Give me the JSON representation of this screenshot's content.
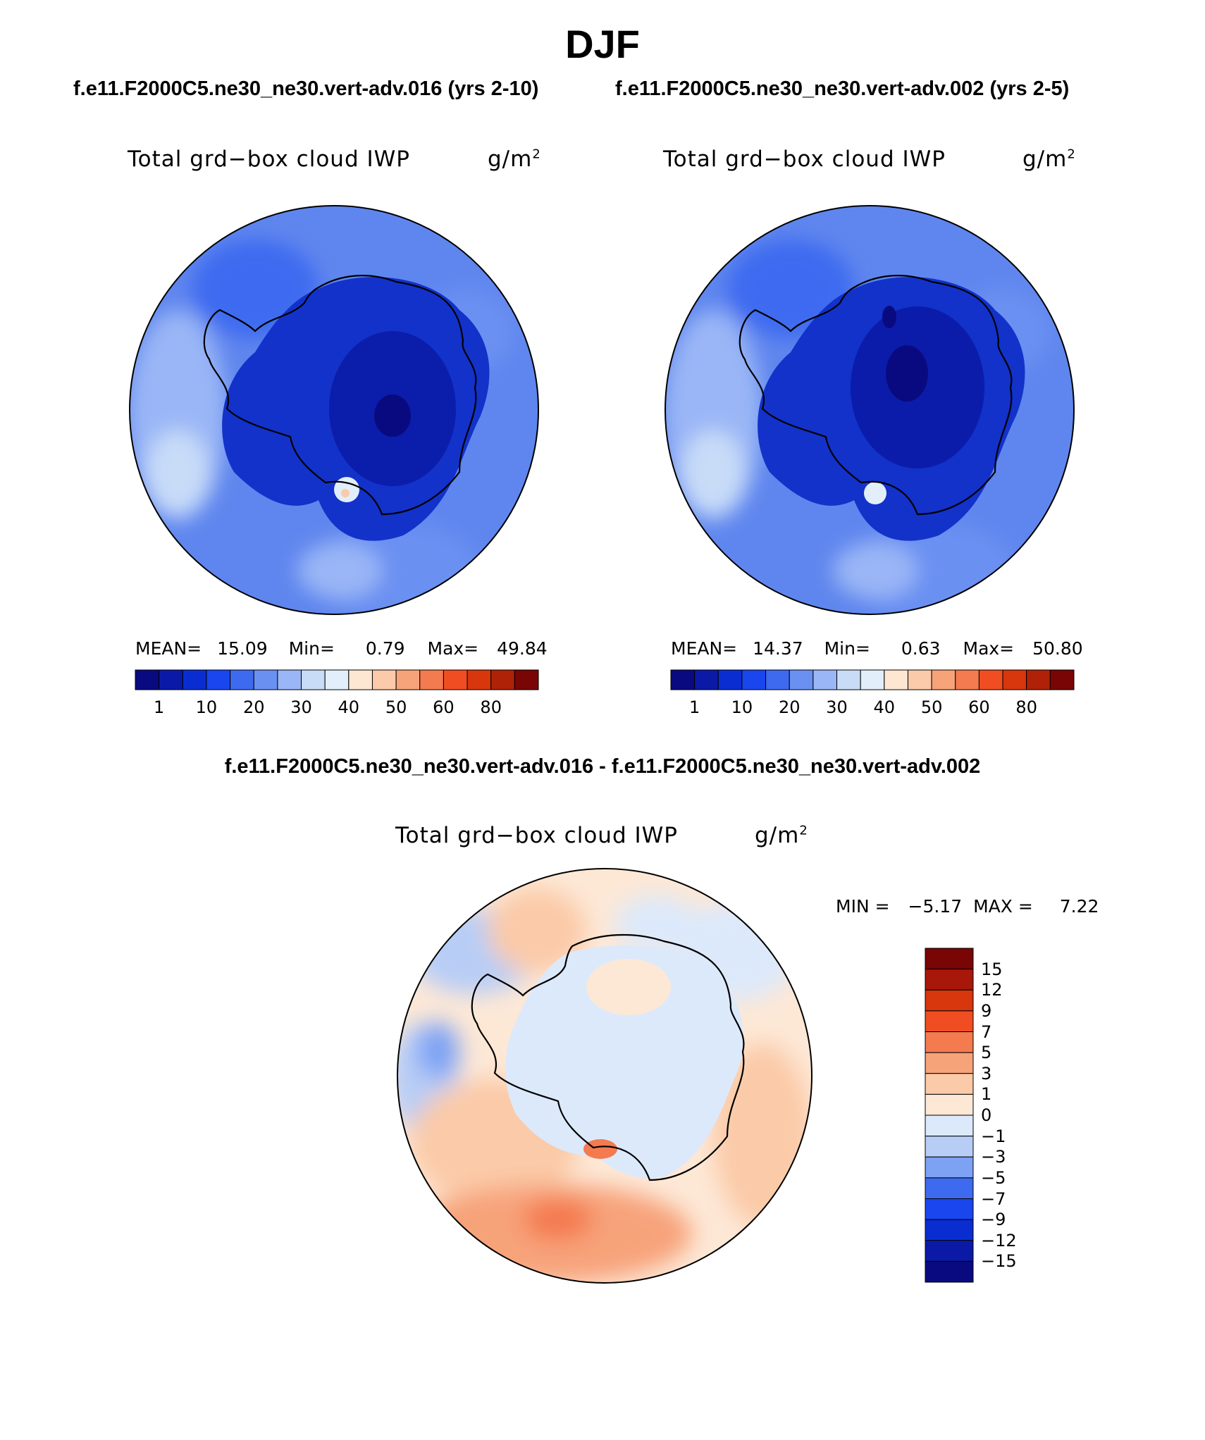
{
  "figure": {
    "season": "DJF",
    "left_case_title": "f.e11.F2000C5.ne30_ne30.vert-adv.016 (yrs 2-10)",
    "right_case_title": "f.e11.F2000C5.ne30_ne30.vert-adv.002 (yrs 2-5)",
    "diff_title": "f.e11.F2000C5.ne30_ne30.vert-adv.016 - f.e11.F2000C5.ne30_ne30.vert-adv.002"
  },
  "panels": {
    "left": {
      "variable": "Total grd−box cloud IWP",
      "units": "g/m",
      "units_sup": "2",
      "mean_label": "MEAN=",
      "mean": "15.09",
      "min_label": "Min=",
      "min": "0.79",
      "max_label": "Max=",
      "max": "49.84"
    },
    "right": {
      "variable": "Total grd−box cloud IWP",
      "units": "g/m",
      "units_sup": "2",
      "mean_label": "MEAN=",
      "mean": "14.37",
      "min_label": "Min=",
      "min": "0.63",
      "max_label": "Max=",
      "max": "50.80"
    },
    "diff": {
      "variable": "Total grd−box cloud IWP",
      "units": "g/m",
      "units_sup": "2",
      "min_label": "MIN =",
      "min": "−5.17",
      "max_label": "MAX =",
      "max": "7.22"
    }
  },
  "colorbars": {
    "field": {
      "colors": [
        "#0a0a80",
        "#0b1aa6",
        "#0a2dd2",
        "#1a46ee",
        "#3e6af0",
        "#6a90f2",
        "#9ab6f6",
        "#c8dcf8",
        "#e2eefa",
        "#fde6d2",
        "#fbcaaa",
        "#f7a37a",
        "#f47a50",
        "#f04e22",
        "#d8360c",
        "#b02208",
        "#7a0505"
      ],
      "ticks": [
        "1",
        "10",
        "20",
        "30",
        "40",
        "50",
        "60",
        "80"
      ]
    },
    "diff": {
      "colors": [
        "#0a0a80",
        "#0b1aa6",
        "#0a2dd2",
        "#1a46ee",
        "#3e6af0",
        "#7da2f4",
        "#b7cdf6",
        "#dce9fb",
        "#fde8d6",
        "#fbcaa8",
        "#f7a37a",
        "#f47a50",
        "#f04e22",
        "#d8360c",
        "#a8180a",
        "#7a0505"
      ],
      "labels": [
        "15",
        "12",
        "9",
        "7",
        "5",
        "3",
        "1",
        "0",
        "−1",
        "−3",
        "−5",
        "−7",
        "−9",
        "−12",
        "−15"
      ]
    }
  },
  "map_colors": {
    "field_background": "#5f86ee",
    "continent_field": "#1232c9",
    "diff_background": "#fde8d6",
    "outline": "#000000"
  }
}
